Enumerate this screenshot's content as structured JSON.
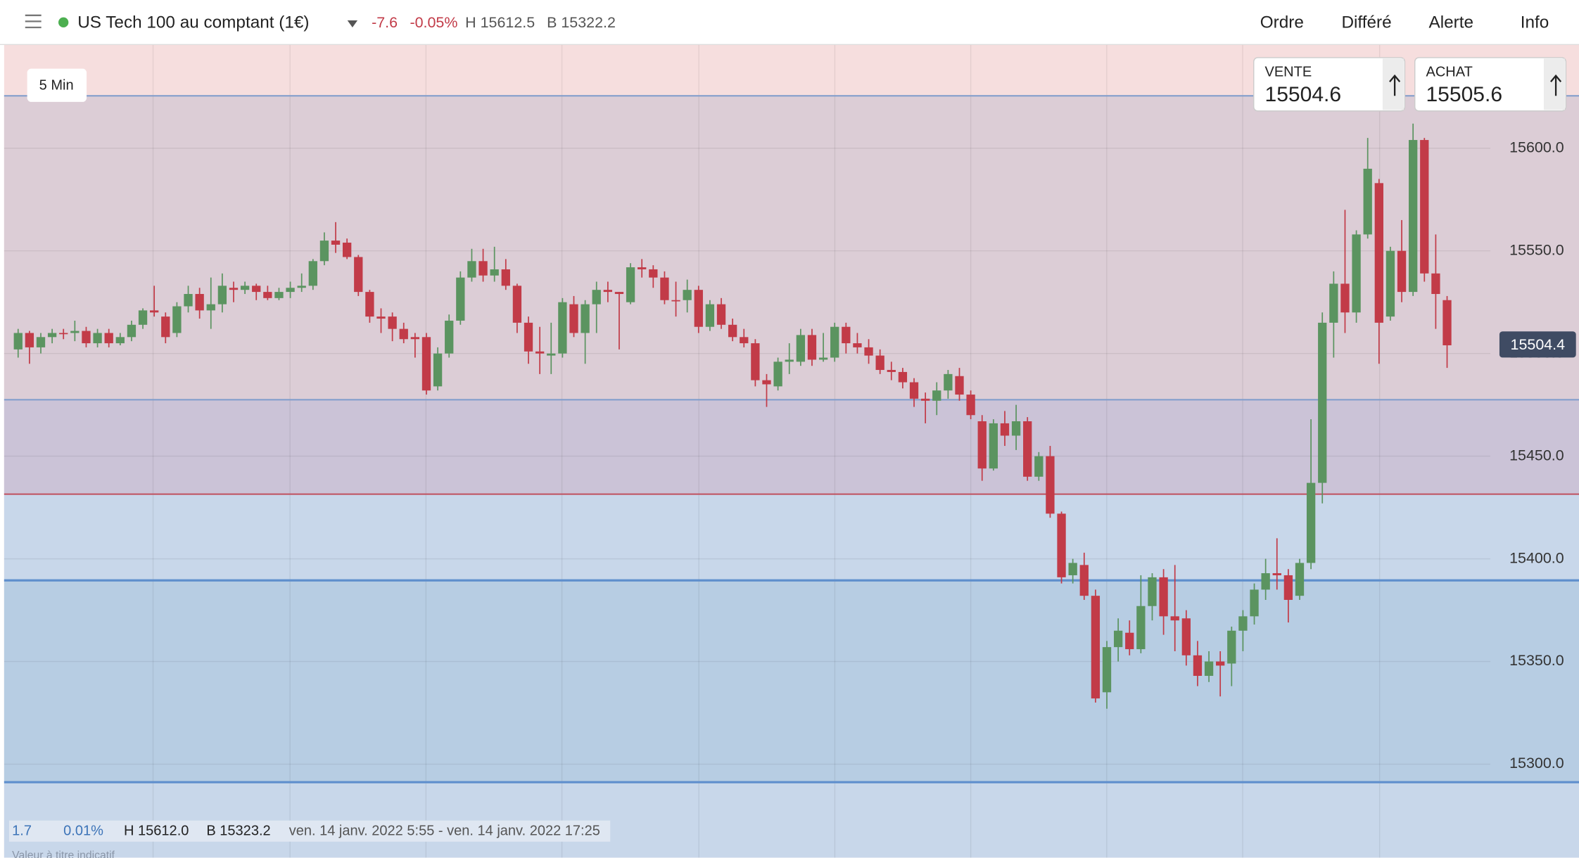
{
  "header": {
    "instrument": "US Tech 100 au comptant (1€)",
    "change": "-7.6",
    "change_pct": "-0.05%",
    "high": "H 15612.5",
    "low": "B 15322.2",
    "nav": [
      "Ordre",
      "Différé",
      "Alerte",
      "Info"
    ]
  },
  "tickets": [
    {
      "label": "VENTE",
      "price": "15504.6"
    },
    {
      "label": "ACHAT",
      "price": "15505.6"
    }
  ],
  "timeframe": "5 Min",
  "footer": {
    "change": "1.7",
    "change_pct": "0.01%",
    "high": "H 15612.0",
    "low": "B 15323.2",
    "range": "ven. 14 janv. 2022 5:55 - ven. 14 janv. 2022 17:25",
    "note": "Valeur à titre indicatif"
  },
  "chart_data": {
    "type": "candlestick",
    "up_color": "#5b9460",
    "down_color": "#c23b48",
    "background": "#f6dede",
    "ylim": [
      15254.4,
      15650.5
    ],
    "yticks": [
      {
        "value": 15300,
        "label": "15300.0"
      },
      {
        "value": 15350,
        "label": "15350.0"
      },
      {
        "value": 15400,
        "label": "15400.0"
      },
      {
        "value": 15450,
        "label": "15450.0"
      },
      {
        "value": 15500,
        "label": "15500.0"
      },
      {
        "value": 15550,
        "label": "15550.0"
      },
      {
        "value": 15600,
        "label": "15600.0"
      }
    ],
    "last_price": 15504.4,
    "levels": [
      {
        "value": 15625.5,
        "color": "#7e9ccc",
        "fill": "#dccdd6"
      },
      {
        "value": 15477.5,
        "color": "#7e9ccc",
        "fill": "#cbc3d7"
      },
      {
        "value": 15431.5,
        "color": "#c0505e",
        "fill": "#c8d7ea"
      },
      {
        "value": 15389.5,
        "color": "#5f8fcd",
        "fill": "#b7cde3"
      },
      {
        "value": 15291.2,
        "color": "#5f8fcd",
        "fill": "#c8d7ea"
      }
    ],
    "open": [
      15502,
      15510,
      15503,
      15508,
      15510,
      15510,
      15511,
      15505,
      15510,
      15505,
      15508,
      15514,
      15521,
      15518,
      15510,
      15523,
      15529,
      15521,
      15524,
      15532,
      15531,
      15533,
      15530,
      15527,
      15530,
      15532,
      15533,
      15545,
      15555,
      15554,
      15547,
      15530,
      15518,
      15518,
      15512,
      15508,
      15508,
      15484,
      15500,
      15516,
      15537,
      15545,
      15538,
      15541,
      15533,
      15515,
      15501,
      15499,
      15500,
      15524,
      15510,
      15524,
      15531,
      15530,
      15525,
      15542,
      15541,
      15537,
      15526,
      15526,
      15531,
      15513,
      15524,
      15514,
      15508,
      15505,
      15487,
      15484,
      15496,
      15496,
      15509,
      15497,
      15498,
      15513,
      15505,
      15503,
      15499,
      15492,
      15491,
      15486,
      15478,
      15477,
      15482,
      15489,
      15480,
      15467,
      15444,
      15466,
      15460,
      15467,
      15440,
      15450,
      15422,
      15392,
      15397,
      15382,
      15335,
      15357,
      15364,
      15356,
      15377,
      15391,
      15372,
      15371,
      15353,
      15343,
      15350,
      15349,
      15365,
      15372,
      15385,
      15393,
      15392,
      15382,
      15398,
      15437,
      15515,
      15534,
      15520,
      15558,
      15583,
      15518,
      15550,
      15530,
      15604,
      15539,
      15526
    ],
    "high": [
      15512,
      15511,
      15510,
      15512,
      15512,
      15516,
      15513,
      15512,
      15512,
      15510,
      15516,
      15522,
      15533,
      15520,
      15525,
      15533,
      15532,
      15537,
      15539,
      15535,
      15535,
      15534,
      15533,
      15532,
      15535,
      15539,
      15546,
      15559,
      15564,
      15556,
      15548,
      15531,
      15522,
      15520,
      15515,
      15510,
      15510,
      15503,
      15519,
      15540,
      15551,
      15551,
      15552,
      15546,
      15534,
      15518,
      15513,
      15515,
      15527,
      15528,
      15526,
      15535,
      15535,
      15530,
      15544,
      15546,
      15543,
      15540,
      15535,
      15536,
      15533,
      15526,
      15527,
      15517,
      15512,
      15507,
      15490,
      15498,
      15505,
      15512,
      15512,
      15510,
      15515,
      15515,
      15510,
      15507,
      15502,
      15496,
      15493,
      15488,
      15481,
      15486,
      15492,
      15493,
      15482,
      15470,
      15468,
      15472,
      15475,
      15469,
      15452,
      15455,
      15423,
      15400,
      15403,
      15385,
      15360,
      15371,
      15370,
      15392,
      15393,
      15395,
      15397,
      15375,
      15360,
      15355,
      15355,
      15367,
      15375,
      15388,
      15400,
      15410,
      15395,
      15400,
      15468,
      15520,
      15540,
      15570,
      15560,
      15605,
      15585,
      15552,
      15565,
      15612,
      15605,
      15558,
      15528
    ],
    "low": [
      15498,
      15495,
      15500,
      15505,
      15507,
      15506,
      15503,
      15503,
      15503,
      15504,
      15506,
      15512,
      15518,
      15505,
      15508,
      15520,
      15517,
      15512,
      15520,
      15525,
      15529,
      15526,
      15526,
      15526,
      15527,
      15530,
      15531,
      15543,
      15549,
      15546,
      15528,
      15515,
      15510,
      15506,
      15505,
      15498,
      15480,
      15482,
      15498,
      15514,
      15535,
      15535,
      15535,
      15531,
      15510,
      15495,
      15490,
      15490,
      15498,
      15508,
      15495,
      15510,
      15525,
      15502,
      15524,
      15537,
      15532,
      15524,
      15518,
      15520,
      15510,
      15511,
      15512,
      15506,
      15503,
      15484,
      15474,
      15482,
      15490,
      15494,
      15494,
      15496,
      15496,
      15500,
      15500,
      15495,
      15490,
      15487,
      15483,
      15474,
      15466,
      15470,
      15478,
      15477,
      15468,
      15438,
      15443,
      15455,
      15453,
      15438,
      15438,
      15420,
      15388,
      15388,
      15380,
      15330,
      15327,
      15350,
      15353,
      15354,
      15370,
      15363,
      15355,
      15348,
      15338,
      15340,
      15333,
      15338,
      15355,
      15368,
      15380,
      15385,
      15369,
      15380,
      15395,
      15427,
      15498,
      15510,
      15515,
      15556,
      15495,
      15516,
      15525,
      15528,
      15535,
      15512,
      15493
    ],
    "close": [
      15510,
      15503,
      15508,
      15510,
      15510,
      15511,
      15505,
      15510,
      15505,
      15508,
      15514,
      15521,
      15520,
      15508,
      15523,
      15529,
      15521,
      15524,
      15533,
      15531,
      15533,
      15530,
      15527,
      15530,
      15532,
      15533,
      15545,
      15555,
      15553,
      15547,
      15530,
      15518,
      15517,
      15512,
      15507,
      15507,
      15482,
      15500,
      15516,
      15537,
      15545,
      15538,
      15541,
      15533,
      15515,
      15501,
      15500,
      15500,
      15525,
      15510,
      15524,
      15531,
      15530,
      15529,
      15542,
      15541,
      15537,
      15526,
      15526,
      15531,
      15513,
      15524,
      15514,
      15508,
      15505,
      15487,
      15485,
      15496,
      15497,
      15509,
      15497,
      15498,
      15513,
      15505,
      15503,
      15499,
      15492,
      15491,
      15486,
      15478,
      15477,
      15482,
      15490,
      15480,
      15470,
      15444,
      15466,
      15460,
      15467,
      15440,
      15450,
      15422,
      15391,
      15398,
      15382,
      15332,
      15357,
      15365,
      15356,
      15377,
      15391,
      15372,
      15370,
      15353,
      15343,
      15350,
      15348,
      15365,
      15372,
      15385,
      15393,
      15392,
      15380,
      15398,
      15437,
      15515,
      15534,
      15520,
      15558,
      15590,
      15515,
      15550,
      15530,
      15604,
      15539,
      15529,
      15504
    ]
  }
}
